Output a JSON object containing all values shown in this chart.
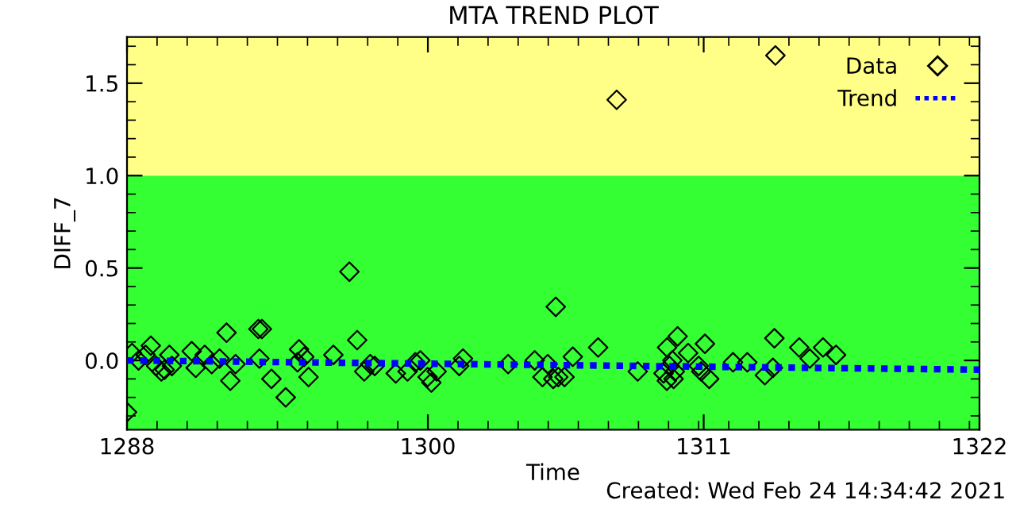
{
  "chart_data": {
    "type": "scatter",
    "title": "MTA TREND PLOT",
    "xlabel": "Time",
    "ylabel": "DIFF_7",
    "xlim": [
      1288,
      1322
    ],
    "xticks": [
      1288,
      1300,
      1311,
      1322
    ],
    "ylim": [
      -0.375,
      1.75
    ],
    "yticks": [
      {
        "value": 0,
        "label": "0.0"
      },
      0.5,
      {
        "value": 1,
        "label": "1.0"
      },
      1.5
    ],
    "grid": false,
    "legend": "top right",
    "bands": [
      {
        "axis": "y",
        "from": -0.375,
        "to": 1.0,
        "color": "#33ff33"
      },
      {
        "axis": "y",
        "from": 1.0,
        "to": 1.75,
        "color": "#ffff88"
      }
    ],
    "series": [
      {
        "name": "Data",
        "marker": "diamond",
        "color": "#000000",
        "x": [
          1288,
          1288.2,
          1288.46,
          1288.74,
          1288.95,
          1289.16,
          1289.37,
          1289.5,
          1289.69,
          1289.79,
          1290.58,
          1290.74,
          1291.1,
          1291.38,
          1291.69,
          1291.97,
          1292.12,
          1292.33,
          1293.24,
          1293.28,
          1293.38,
          1293.76,
          1294.33,
          1294.8,
          1294.86,
          1295.07,
          1295.24,
          1296.23,
          1296.87,
          1297.18,
          1297.46,
          1297.7,
          1297.88,
          1298.72,
          1299.19,
          1299.5,
          1299.7,
          1299.99,
          1300.14,
          1300.35,
          1301.25,
          1301.4,
          1303.2,
          1304.26,
          1304.57,
          1304.78,
          1305.0,
          1305.1,
          1305.2,
          1305.45,
          1305.78,
          1306.79,
          1307.53,
          1308.37,
          1309.4,
          1309.53,
          1309.54,
          1309.64,
          1309.75,
          1309.8,
          1309.85,
          1309.96,
          1310.38,
          1310.8,
          1310.9,
          1311.05,
          1311.22,
          1312.17,
          1312.74,
          1313.44,
          1313.76,
          1313.82,
          1313.86,
          1314.81,
          1315.23,
          1315.76,
          1316.28
        ],
        "values": [
          -0.28,
          0.04,
          0.0,
          0.03,
          0.08,
          -0.03,
          -0.06,
          -0.05,
          0.03,
          -0.03,
          0.05,
          -0.04,
          0.03,
          -0.02,
          0.01,
          0.15,
          -0.11,
          -0.02,
          0.17,
          0.01,
          0.17,
          -0.1,
          -0.2,
          -0.01,
          0.06,
          0.02,
          -0.09,
          0.03,
          0.48,
          0.11,
          -0.06,
          -0.02,
          -0.03,
          -0.07,
          -0.06,
          -0.01,
          0.0,
          -0.09,
          -0.12,
          -0.06,
          -0.03,
          0.01,
          -0.02,
          0.0,
          -0.09,
          -0.02,
          -0.1,
          0.29,
          -0.09,
          -0.09,
          0.02,
          0.07,
          1.41,
          -0.06,
          -0.07,
          -0.11,
          0.07,
          -0.03,
          0.0,
          -0.1,
          -0.06,
          0.13,
          0.04,
          -0.03,
          -0.06,
          0.09,
          -0.1,
          -0.01,
          -0.01,
          -0.08,
          -0.04,
          0.12,
          1.65,
          0.07,
          0.01,
          0.07,
          0.03
        ]
      },
      {
        "name": "Trend",
        "type": "line",
        "line_style": "dotted",
        "marker": "none",
        "color": "#0000ff",
        "x": [
          1288,
          1322
        ],
        "values": [
          0.0,
          -0.05
        ]
      }
    ],
    "annotations": [
      "Created: Wed Feb 24 14:34:42 2021"
    ]
  }
}
